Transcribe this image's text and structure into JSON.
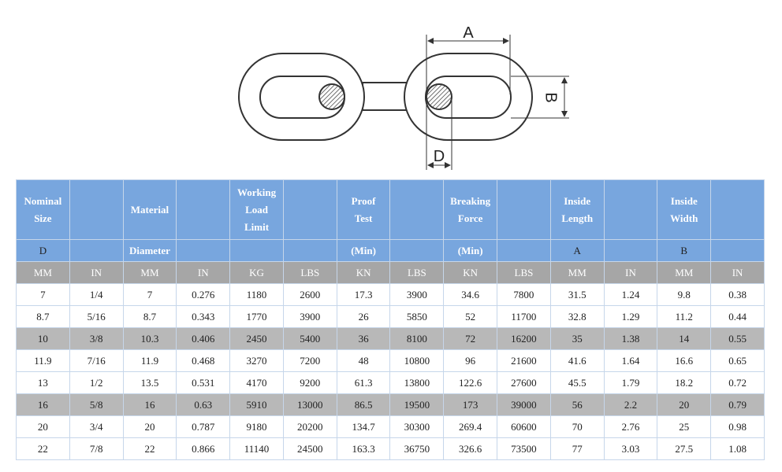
{
  "diagram": {
    "labels": [
      "A",
      "B",
      "D"
    ]
  },
  "table": {
    "header_rows": [
      [
        "Nominal Size",
        null,
        "Material",
        null,
        "Working Load Limit",
        null,
        "Proof Test",
        null,
        "Breaking Force",
        null,
        "Inside Length",
        null,
        "Inside Width",
        null
      ],
      [
        "D",
        null,
        "Diameter",
        null,
        null,
        null,
        "(Min)",
        null,
        "(Min)",
        null,
        "A",
        null,
        "B",
        null
      ],
      [
        "MM",
        "IN",
        "MM",
        "IN",
        "KG",
        "LBS",
        "KN",
        "LBS",
        "KN",
        "LBS",
        "MM",
        "IN",
        "MM",
        "IN"
      ]
    ],
    "rows": [
      [
        "7",
        "1/4",
        "7",
        "0.276",
        "1180",
        "2600",
        "17.3",
        "3900",
        "34.6",
        "7800",
        "31.5",
        "1.24",
        "9.8",
        "0.38"
      ],
      [
        "8.7",
        "5/16",
        "8.7",
        "0.343",
        "1770",
        "3900",
        "26",
        "5850",
        "52",
        "11700",
        "32.8",
        "1.29",
        "11.2",
        "0.44"
      ],
      [
        "10",
        "3/8",
        "10.3",
        "0.406",
        "2450",
        "5400",
        "36",
        "8100",
        "72",
        "16200",
        "35",
        "1.38",
        "14",
        "0.55"
      ],
      [
        "11.9",
        "7/16",
        "11.9",
        "0.468",
        "3270",
        "7200",
        "48",
        "10800",
        "96",
        "21600",
        "41.6",
        "1.64",
        "16.6",
        "0.65"
      ],
      [
        "13",
        "1/2",
        "13.5",
        "0.531",
        "4170",
        "9200",
        "61.3",
        "13800",
        "122.6",
        "27600",
        "45.5",
        "1.79",
        "18.2",
        "0.72"
      ],
      [
        "16",
        "5/8",
        "16",
        "0.63",
        "5910",
        "13000",
        "86.5",
        "19500",
        "173",
        "39000",
        "56",
        "2.2",
        "20",
        "0.79"
      ],
      [
        "20",
        "3/4",
        "20",
        "0.787",
        "9180",
        "20200",
        "134.7",
        "30300",
        "269.4",
        "60600",
        "70",
        "2.76",
        "25",
        "0.98"
      ],
      [
        "22",
        "7/8",
        "22",
        "0.866",
        "11140",
        "24500",
        "163.3",
        "36750",
        "326.6",
        "73500",
        "77",
        "3.03",
        "27.5",
        "1.08"
      ]
    ]
  }
}
